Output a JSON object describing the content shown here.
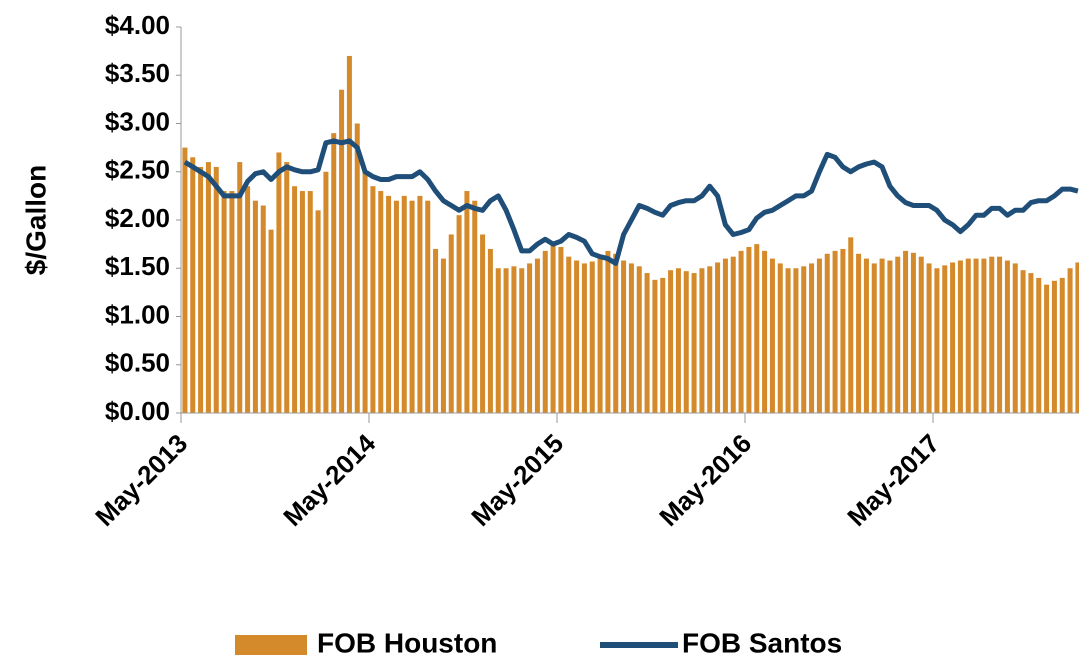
{
  "chart_data": {
    "type": "combo",
    "y_axis_label": "$/Gallon",
    "ylim": [
      0,
      4
    ],
    "yticks": [
      {
        "value": 0,
        "label": "$0.00"
      },
      {
        "value": 0.5,
        "label": "$0.50"
      },
      {
        "value": 1,
        "label": "$1.00"
      },
      {
        "value": 1.5,
        "label": "$1.50"
      },
      {
        "value": 2,
        "label": "$2.00"
      },
      {
        "value": 2.5,
        "label": "$2.50"
      },
      {
        "value": 3,
        "label": "$3.00"
      },
      {
        "value": 3.5,
        "label": "$3.50"
      },
      {
        "value": 4,
        "label": "$4.00"
      }
    ],
    "categories": [
      "May-2013",
      null,
      null,
      null,
      null,
      null,
      null,
      null,
      null,
      null,
      null,
      null,
      null,
      null,
      null,
      null,
      null,
      null,
      null,
      null,
      null,
      null,
      null,
      null,
      "May-2014",
      null,
      null,
      null,
      null,
      null,
      null,
      null,
      null,
      null,
      null,
      null,
      null,
      null,
      null,
      null,
      null,
      null,
      null,
      null,
      null,
      null,
      null,
      null,
      "May-2015",
      null,
      null,
      null,
      null,
      null,
      null,
      null,
      null,
      null,
      null,
      null,
      null,
      null,
      null,
      null,
      null,
      null,
      null,
      null,
      null,
      null,
      null,
      null,
      "May-2016",
      null,
      null,
      null,
      null,
      null,
      null,
      null,
      null,
      null,
      null,
      null,
      null,
      null,
      null,
      null,
      null,
      null,
      null,
      null,
      null,
      null,
      null,
      null,
      "May-2017",
      null,
      null,
      null,
      null,
      null,
      null,
      null,
      null,
      null,
      null,
      null,
      null,
      null,
      null,
      null,
      null,
      null,
      null
    ],
    "series": [
      {
        "name": "FOB Houston",
        "type": "bar",
        "color": "#d4892a",
        "values": [
          2.75,
          2.65,
          2.55,
          2.6,
          2.55,
          2.3,
          2.3,
          2.6,
          2.35,
          2.2,
          2.15,
          1.9,
          2.7,
          2.6,
          2.35,
          2.3,
          2.3,
          2.1,
          2.5,
          2.9,
          3.35,
          3.7,
          3.0,
          2.5,
          2.35,
          2.3,
          2.25,
          2.2,
          2.25,
          2.2,
          2.25,
          2.2,
          1.7,
          1.6,
          1.85,
          2.05,
          2.3,
          2.2,
          1.85,
          1.7,
          1.5,
          1.5,
          1.52,
          1.5,
          1.55,
          1.6,
          1.68,
          1.75,
          1.72,
          1.62,
          1.58,
          1.55,
          1.57,
          1.62,
          1.68,
          1.65,
          1.58,
          1.55,
          1.52,
          1.45,
          1.38,
          1.4,
          1.48,
          1.5,
          1.47,
          1.45,
          1.5,
          1.52,
          1.56,
          1.6,
          1.62,
          1.68,
          1.72,
          1.75,
          1.68,
          1.6,
          1.55,
          1.5,
          1.5,
          1.52,
          1.55,
          1.6,
          1.65,
          1.68,
          1.7,
          1.82,
          1.65,
          1.6,
          1.55,
          1.6,
          1.58,
          1.62,
          1.68,
          1.66,
          1.62,
          1.55,
          1.5,
          1.53,
          1.56,
          1.58,
          1.6,
          1.6,
          1.6,
          1.62,
          1.62,
          1.58,
          1.55,
          1.48,
          1.45,
          1.4,
          1.33,
          1.37,
          1.4,
          1.5,
          1.56
        ]
      },
      {
        "name": "FOB Santos",
        "type": "line",
        "color": "#1f4e79",
        "values": [
          2.6,
          2.55,
          2.5,
          2.45,
          2.35,
          2.25,
          2.25,
          2.25,
          2.4,
          2.48,
          2.5,
          2.42,
          2.5,
          2.55,
          2.52,
          2.5,
          2.5,
          2.52,
          2.8,
          2.82,
          2.8,
          2.82,
          2.75,
          2.5,
          2.45,
          2.42,
          2.42,
          2.45,
          2.45,
          2.45,
          2.5,
          2.42,
          2.3,
          2.2,
          2.15,
          2.1,
          2.15,
          2.12,
          2.1,
          2.2,
          2.25,
          2.1,
          1.9,
          1.68,
          1.68,
          1.75,
          1.8,
          1.75,
          1.78,
          1.85,
          1.82,
          1.78,
          1.65,
          1.62,
          1.6,
          1.55,
          1.85,
          2.0,
          2.15,
          2.12,
          2.08,
          2.05,
          2.15,
          2.18,
          2.2,
          2.2,
          2.25,
          2.35,
          2.25,
          1.95,
          1.85,
          1.87,
          1.9,
          2.02,
          2.08,
          2.1,
          2.15,
          2.2,
          2.25,
          2.25,
          2.3,
          2.5,
          2.68,
          2.65,
          2.55,
          2.5,
          2.55,
          2.58,
          2.6,
          2.55,
          2.35,
          2.25,
          2.18,
          2.15,
          2.15,
          2.15,
          2.1,
          2.0,
          1.95,
          1.88,
          1.95,
          2.05,
          2.05,
          2.12,
          2.12,
          2.05,
          2.1,
          2.1,
          2.18,
          2.2,
          2.2,
          2.25,
          2.32,
          2.32,
          2.3
        ]
      }
    ]
  }
}
